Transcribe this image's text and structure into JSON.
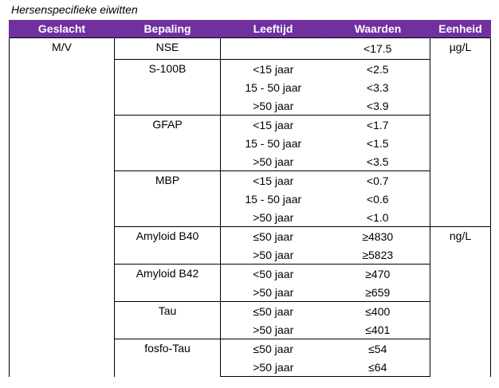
{
  "title": "Hersenspecifieke eiwitten",
  "headers": [
    "Geslacht",
    "Bepaling",
    "Leeftijd",
    "Waarden",
    "Eenheid"
  ],
  "geslacht": "M/V",
  "groups": [
    {
      "bepaling": "NSE",
      "eenheid": "µg/L",
      "rows": [
        {
          "leeftijd": "",
          "waarde": "<17.5"
        }
      ]
    },
    {
      "bepaling": "S-100B",
      "rows": [
        {
          "leeftijd": "<15 jaar",
          "waarde": "<2.5"
        },
        {
          "leeftijd": "15 - 50 jaar",
          "waarde": "<3.3"
        },
        {
          "leeftijd": ">50 jaar",
          "waarde": "<3.9"
        }
      ]
    },
    {
      "bepaling": "GFAP",
      "rows": [
        {
          "leeftijd": "<15 jaar",
          "waarde": "<1.7"
        },
        {
          "leeftijd": "15 - 50 jaar",
          "waarde": "<1.5"
        },
        {
          "leeftijd": ">50 jaar",
          "waarde": "<3.5"
        }
      ]
    },
    {
      "bepaling": "MBP",
      "rows": [
        {
          "leeftijd": "<15 jaar",
          "waarde": "<0.7"
        },
        {
          "leeftijd": "15 - 50 jaar",
          "waarde": "<0.6"
        },
        {
          "leeftijd": ">50 jaar",
          "waarde": "<1.0"
        }
      ]
    },
    {
      "bepaling": "Amyloid B40",
      "eenheid": "ng/L",
      "rows": [
        {
          "leeftijd": "≤50 jaar",
          "waarde": "≥4830"
        },
        {
          "leeftijd": ">50 jaar",
          "waarde": "≥5823"
        }
      ]
    },
    {
      "bepaling": "Amyloid B42",
      "rows": [
        {
          "leeftijd": "<50 jaar",
          "waarde": "≥470"
        },
        {
          "leeftijd": ">50 jaar",
          "waarde": "≥659"
        }
      ]
    },
    {
      "bepaling": "Tau",
      "rows": [
        {
          "leeftijd": "≤50 jaar",
          "waarde": "≤400"
        },
        {
          "leeftijd": ">50 jaar",
          "waarde": "≤401"
        }
      ]
    },
    {
      "bepaling": "fosfo-Tau",
      "rows": [
        {
          "leeftijd": "≤50 jaar",
          "waarde": "≤54"
        },
        {
          "leeftijd": ">50 jaar",
          "waarde": "≤64"
        }
      ]
    }
  ]
}
